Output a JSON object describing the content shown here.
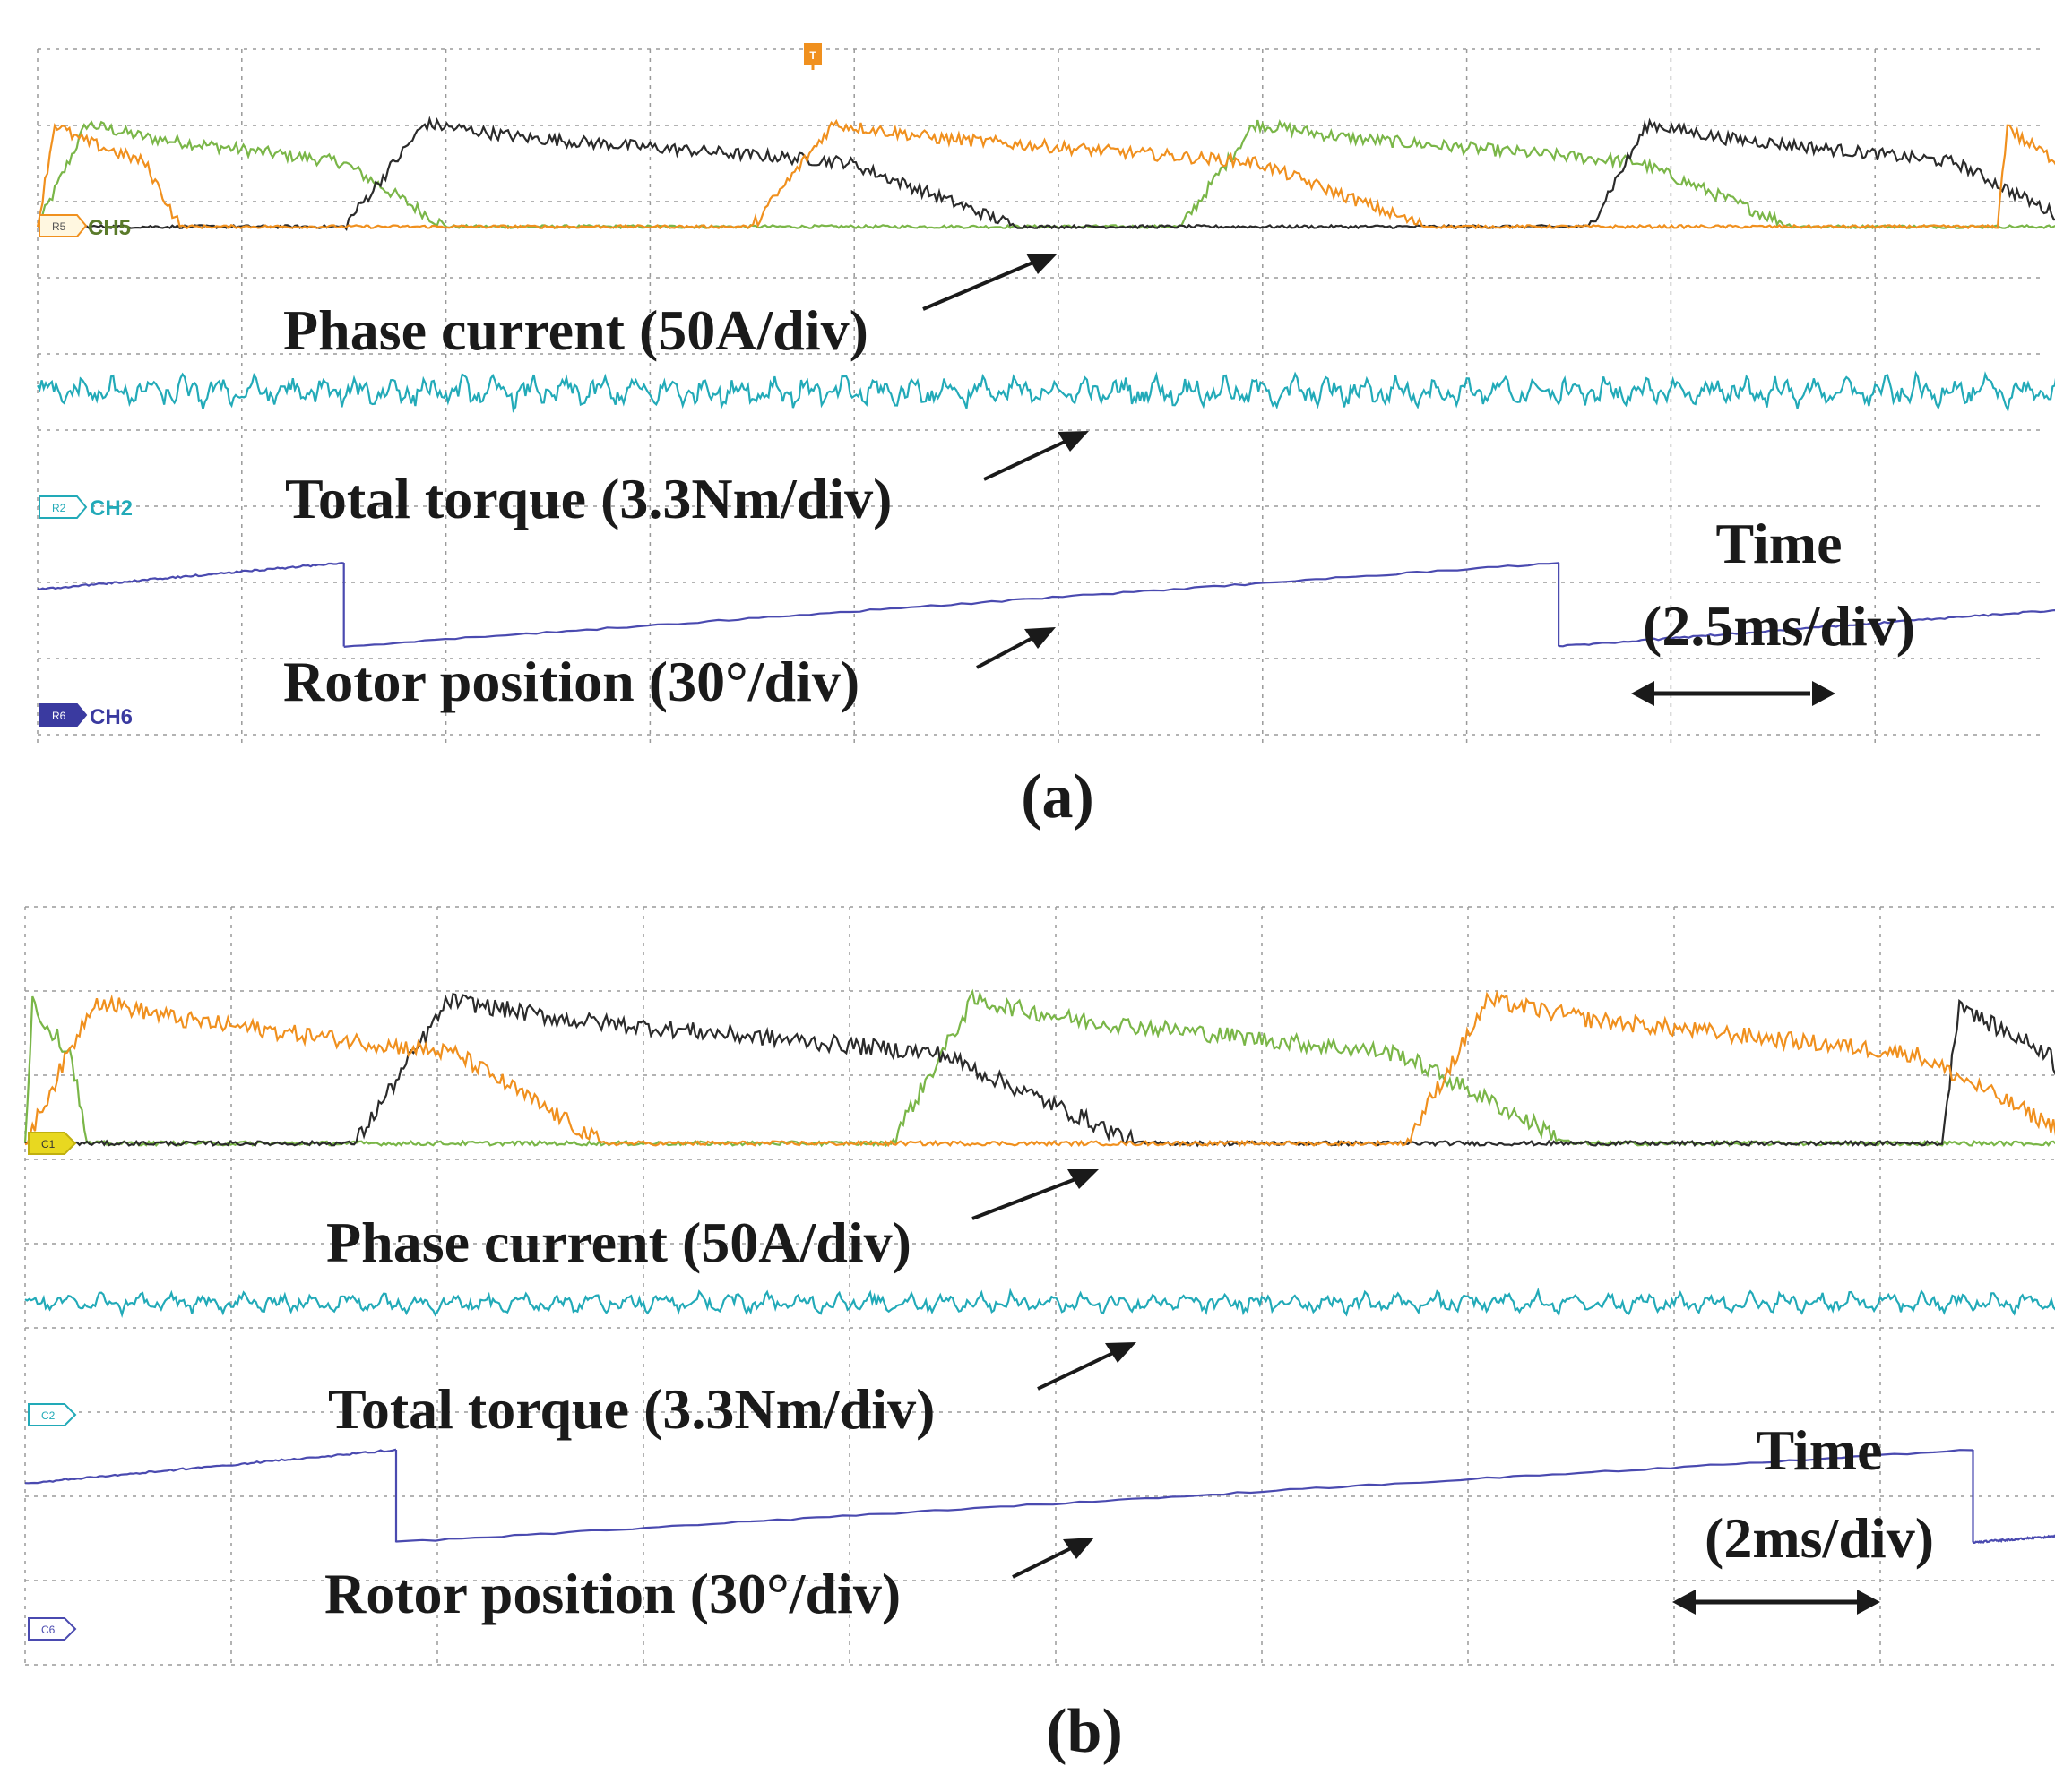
{
  "colors": {
    "phase_a": "#7ab648",
    "phase_b": "#2b2b2b",
    "phase_c": "#f0901e",
    "torque": "#22aab8",
    "rotor": "#4a4ab0",
    "grid": "#9a9a9a",
    "label": "#1a1a1a",
    "trigger": "#f0901e",
    "marker_yellow": "#e8d820"
  },
  "chart_data": [
    {
      "type": "line",
      "caption": "(a)",
      "time_label": "Time",
      "time_scale": "(2.5ms/div)",
      "xlim": [
        0,
        10
      ],
      "x_unit_per_div": "2.5 ms",
      "trigger_marker": "T",
      "annotations": {
        "phase_current": "Phase current (50A/div)",
        "total_torque": "Total torque (3.3Nm/div)",
        "rotor_position": "Rotor position (30°/div)"
      },
      "channel_markers": [
        {
          "tag": "R5",
          "name": "CH5"
        },
        {
          "tag": "R2",
          "name": "CH2"
        },
        {
          "tag": "R6",
          "name": "CH6"
        }
      ],
      "series": [
        {
          "name": "phase current A",
          "color_key": "phase_a",
          "pulses": [
            [
              0,
              2.0
            ],
            [
              5.6,
              8.6
            ]
          ],
          "peak_div": 1.35
        },
        {
          "name": "phase current B",
          "color_key": "phase_b",
          "pulses": [
            [
              1.5,
              4.8
            ],
            [
              7.6,
              10
            ]
          ],
          "peak_div": 1.35
        },
        {
          "name": "phase current C",
          "color_key": "phase_c",
          "pulses": [
            [
              0,
              0.7
            ],
            [
              3.5,
              6.8
            ],
            [
              9.6,
              10
            ]
          ],
          "peak_div": 1.35
        },
        {
          "name": "total torque",
          "color_key": "torque",
          "mean_div": -2.3,
          "ripple_div": 0.2
        },
        {
          "name": "rotor position",
          "color_key": "rotor",
          "ramps": [
            [
              0,
              1.5,
              -4.65,
              -4.3
            ],
            [
              1.5,
              7.45,
              -5.4,
              -4.3
            ],
            [
              7.45,
              10,
              -5.4,
              -4.9
            ]
          ]
        }
      ]
    },
    {
      "type": "line",
      "caption": "(b)",
      "time_label": "Time",
      "time_scale": "(2ms/div)",
      "xlim": [
        0,
        10
      ],
      "x_unit_per_div": "2 ms",
      "annotations": {
        "phase_current": "Phase current (50A/div)",
        "total_torque": "Total torque (3.3Nm/div)",
        "rotor_position": "Rotor position (30°/div)"
      },
      "channel_markers": [
        {
          "tag": "C1",
          "name": ""
        },
        {
          "tag": "C2",
          "name": ""
        },
        {
          "tag": "C6",
          "name": ""
        }
      ],
      "series": [
        {
          "name": "phase current A",
          "color_key": "phase_a",
          "pulses": [
            [
              0,
              0.3
            ],
            [
              4.2,
              7.5
            ]
          ],
          "peak_div": 1.7
        },
        {
          "name": "phase current B",
          "color_key": "phase_b",
          "pulses": [
            [
              1.6,
              5.4
            ],
            [
              9.3,
              10
            ]
          ],
          "peak_div": 1.7
        },
        {
          "name": "phase current C",
          "color_key": "phase_c",
          "pulses": [
            [
              0,
              2.8
            ],
            [
              6.7,
              10
            ]
          ],
          "peak_div": 1.7
        },
        {
          "name": "total torque",
          "color_key": "torque",
          "mean_div": -2.1,
          "ripple_div": 0.12
        },
        {
          "name": "rotor position",
          "color_key": "rotor",
          "ramps": [
            [
              0,
              1.8,
              -4.4,
              -4.0
            ],
            [
              1.8,
              9.45,
              -5.1,
              -4.0
            ],
            [
              9.45,
              10,
              -5.1,
              -5.0
            ]
          ]
        }
      ]
    }
  ]
}
